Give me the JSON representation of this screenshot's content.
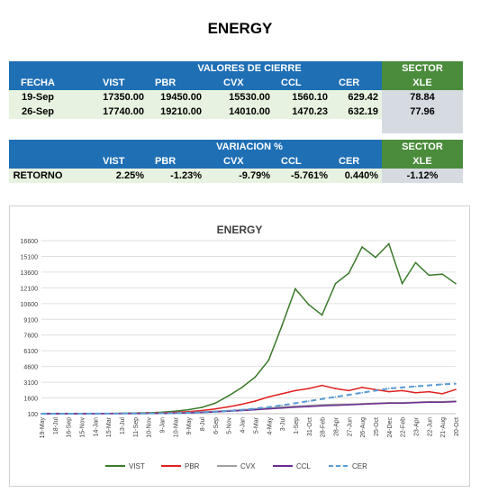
{
  "page_title": "ENERGY",
  "table1": {
    "columns": [
      "FECHA",
      "VIST",
      "PBR",
      "CVX",
      "CCL",
      "CER"
    ],
    "group_header": "VALORES DE CIERRE",
    "sector_header": "SECTOR",
    "sector_sub": "XLE",
    "rows": [
      {
        "fecha": "19-Sep",
        "vist": "17350.00",
        "pbr": "19450.00",
        "cvx": "15530.00",
        "ccl": "1560.10",
        "cer": "629.42",
        "xle": "78.84"
      },
      {
        "fecha": "26-Sep",
        "vist": "17740.00",
        "pbr": "19210.00",
        "cvx": "14010.00",
        "ccl": "1470.23",
        "cer": "632.19",
        "xle": "77.96"
      }
    ]
  },
  "table2": {
    "group_header": "VARIACION %",
    "columns": [
      "VIST",
      "PBR",
      "CVX",
      "CCL",
      "CER"
    ],
    "sector_header": "SECTOR",
    "sector_sub": "XLE",
    "row": {
      "label": "RETORNO",
      "vist": "2.25%",
      "pbr": "-1.23%",
      "cvx": "-9.79%",
      "ccl": "-5.761%",
      "cer": "0.440%",
      "xle": "-1.12%"
    }
  },
  "chart_data": {
    "type": "line",
    "title": "ENERGY",
    "xlabel": "",
    "ylabel": "",
    "ylim": [
      100,
      16600
    ],
    "yticks": [
      100,
      1600,
      3100,
      4600,
      6100,
      7600,
      9100,
      10600,
      12100,
      13600,
      15100,
      16600
    ],
    "x": [
      "19-May",
      "18-Jul",
      "16-Sep",
      "15-Nov",
      "14-Jan",
      "15-Mar",
      "13-Jul",
      "11-Sep",
      "10-Nov",
      "9-Jan",
      "10-Mar",
      "9-May",
      "8-Jul",
      "6-Sep",
      "5-Nov",
      "4-Jan",
      "5-Mar",
      "4-May",
      "3-Jul",
      "1-Sep",
      "31-Oct",
      "28-Feb",
      "28-Apr",
      "27-Jun",
      "26-Aug",
      "25-Oct",
      "24-Dec",
      "22-Feb",
      "23-Apr",
      "22-Jun",
      "21-Aug",
      "20-Oct"
    ],
    "series": [
      {
        "name": "VIST",
        "color": "#3a7a2a",
        "dash": false,
        "values": [
          100,
          105,
          110,
          115,
          120,
          130,
          140,
          160,
          190,
          240,
          330,
          480,
          700,
          1100,
          1800,
          2600,
          3600,
          5200,
          8500,
          12000,
          10500,
          9500,
          12500,
          13500,
          16000,
          15000,
          16300,
          12500,
          14500,
          13300,
          13400,
          12500
        ]
      },
      {
        "name": "PBR",
        "color": "#e02020",
        "dash": false,
        "values": [
          100,
          100,
          105,
          105,
          110,
          115,
          120,
          130,
          150,
          180,
          230,
          300,
          400,
          550,
          750,
          1000,
          1300,
          1700,
          2000,
          2300,
          2500,
          2800,
          2500,
          2300,
          2600,
          2400,
          2200,
          2300,
          2100,
          2200,
          2000,
          2400
        ]
      },
      {
        "name": "CVX",
        "color": "#a0a0a0",
        "dash": false,
        "values": [
          100,
          100,
          102,
          104,
          106,
          110,
          115,
          120,
          130,
          150,
          180,
          220,
          270,
          330,
          400,
          480,
          560,
          650,
          740,
          820,
          880,
          950,
          1000,
          1000,
          1050,
          1100,
          1150,
          1150,
          1200,
          1250,
          1250,
          1300
        ]
      },
      {
        "name": "CCL",
        "color": "#6a2c91",
        "dash": false,
        "values": [
          100,
          100,
          101,
          102,
          104,
          106,
          108,
          112,
          118,
          130,
          150,
          180,
          220,
          270,
          330,
          400,
          480,
          560,
          640,
          720,
          780,
          850,
          900,
          950,
          1000,
          1050,
          1100,
          1100,
          1150,
          1200,
          1200,
          1250
        ]
      },
      {
        "name": "CER",
        "color": "#5b9bd5",
        "dash": true,
        "values": [
          100,
          100,
          102,
          104,
          106,
          110,
          114,
          120,
          128,
          140,
          160,
          190,
          230,
          290,
          370,
          470,
          590,
          730,
          900,
          1100,
          1300,
          1500,
          1700,
          1900,
          2100,
          2300,
          2500,
          2600,
          2700,
          2800,
          2900,
          2950
        ]
      }
    ]
  }
}
